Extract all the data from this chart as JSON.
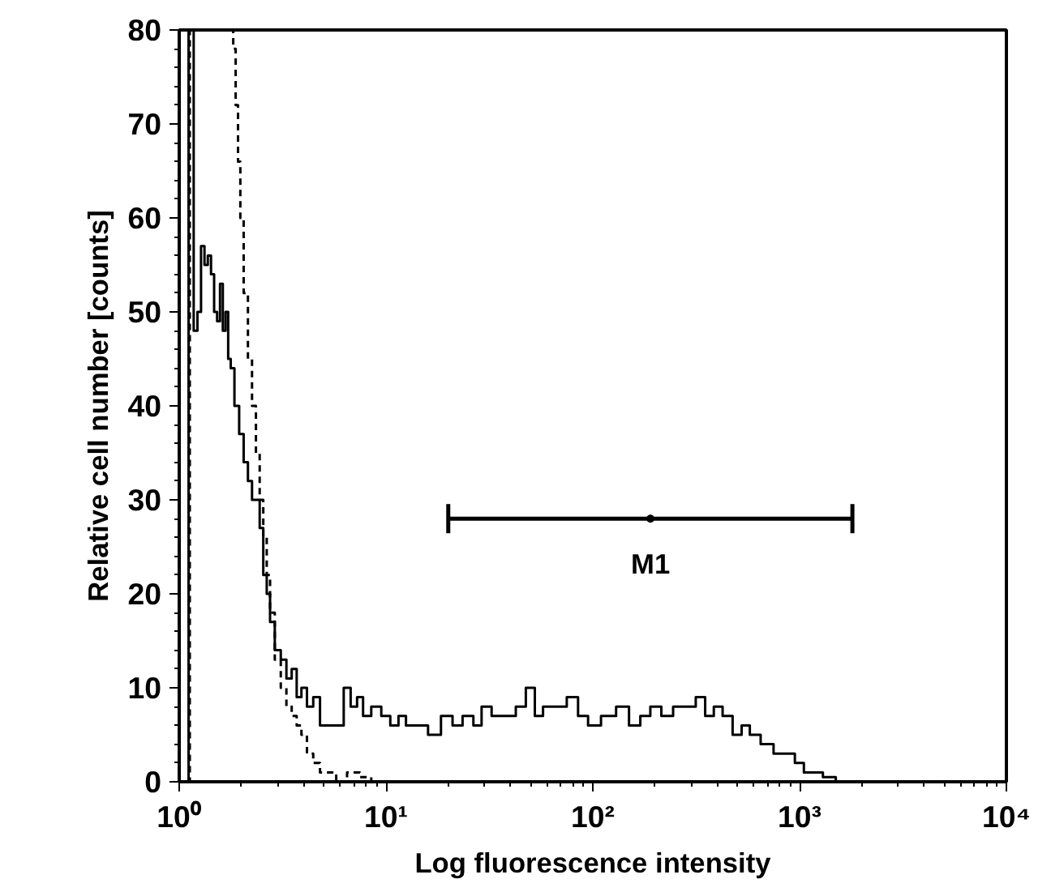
{
  "chart_data": {
    "type": "step",
    "xlabel": "Log fluorescence intensity",
    "ylabel": "Relative cell number [counts]",
    "log": "x",
    "grid": false,
    "xlim": [
      1,
      10000
    ],
    "ylim": [
      0,
      80
    ],
    "xticks": [
      {
        "value": 1,
        "label": "10⁰"
      },
      {
        "value": 10,
        "label": "10¹"
      },
      {
        "value": 100,
        "label": "10²"
      },
      {
        "value": 1000,
        "label": "10³"
      },
      {
        "value": 10000,
        "label": "10⁴"
      }
    ],
    "yticks": [
      0,
      10,
      20,
      30,
      40,
      50,
      60,
      70,
      80
    ],
    "annotations": [
      {
        "text": "M1",
        "x": 190,
        "y": 28
      }
    ],
    "series": [
      {
        "color": "#000000",
        "line_style": "solid",
        "x": [
          1.1,
          1.12,
          1.15,
          1.2,
          1.25,
          1.3,
          1.35,
          1.4,
          1.45,
          1.5,
          1.55,
          1.6,
          1.65,
          1.7,
          1.75,
          1.8,
          1.9,
          2.0,
          2.1,
          2.2,
          2.3,
          2.4,
          2.5,
          2.6,
          2.7,
          2.8,
          3.0,
          3.2,
          3.4,
          3.6,
          3.8,
          4.0,
          4.3,
          4.6,
          5.0,
          5.5,
          6.0,
          6.5,
          7.0,
          7.5,
          8.0,
          9.0,
          10,
          11,
          12,
          13,
          15,
          17,
          20,
          22,
          25,
          28,
          30,
          35,
          40,
          45,
          50,
          55,
          60,
          70,
          80,
          90,
          100,
          120,
          140,
          160,
          180,
          200,
          230,
          260,
          300,
          330,
          370,
          400,
          450,
          500,
          550,
          600,
          700,
          800,
          900,
          1000,
          1100,
          1200,
          1400,
          1600,
          2000
        ],
        "values": [
          0,
          80,
          80,
          48,
          50,
          57,
          55,
          56,
          54,
          50,
          49,
          53,
          48,
          50,
          45,
          44,
          40,
          37,
          34,
          32,
          30,
          30,
          27,
          22,
          20,
          17,
          14,
          13,
          11,
          12,
          9,
          10,
          8,
          9,
          6,
          6,
          6,
          10,
          8,
          9,
          7,
          8,
          7,
          6,
          7,
          6,
          6,
          5,
          7,
          6,
          7,
          6,
          8,
          7,
          7,
          8,
          10,
          7,
          8,
          8,
          9,
          7,
          6,
          7,
          8,
          6,
          7,
          8,
          7,
          8,
          8,
          9,
          7,
          8,
          7,
          5,
          6,
          5,
          4,
          3,
          3,
          2,
          1,
          1,
          0.5,
          0,
          0
        ]
      },
      {
        "color": "#000000",
        "line_style": "dashed",
        "x": [
          1.1,
          1.15,
          1.2,
          1.3,
          1.5,
          1.7,
          1.8,
          1.85,
          1.9,
          1.95,
          2.0,
          2.1,
          2.2,
          2.3,
          2.4,
          2.5,
          2.6,
          2.7,
          2.8,
          3.0,
          3.2,
          3.4,
          3.6,
          3.8,
          4.0,
          4.3,
          4.6,
          5.0,
          5.5,
          6.0,
          7.0,
          8.0,
          9.0,
          10
        ],
        "values": [
          0,
          80,
          80,
          80,
          80,
          80,
          80,
          78,
          72,
          66,
          60,
          52,
          45,
          40,
          35,
          30,
          26,
          22,
          18,
          13,
          10,
          8,
          7,
          6,
          5,
          3,
          2,
          1,
          1,
          0,
          1,
          0.5,
          0,
          0
        ]
      },
      {
        "type": "scatter",
        "marker": "circle",
        "color": "#000000",
        "x": [
          190
        ],
        "values": [
          28
        ],
        "xerrors": [
          [
            20,
            1800
          ]
        ]
      }
    ]
  }
}
